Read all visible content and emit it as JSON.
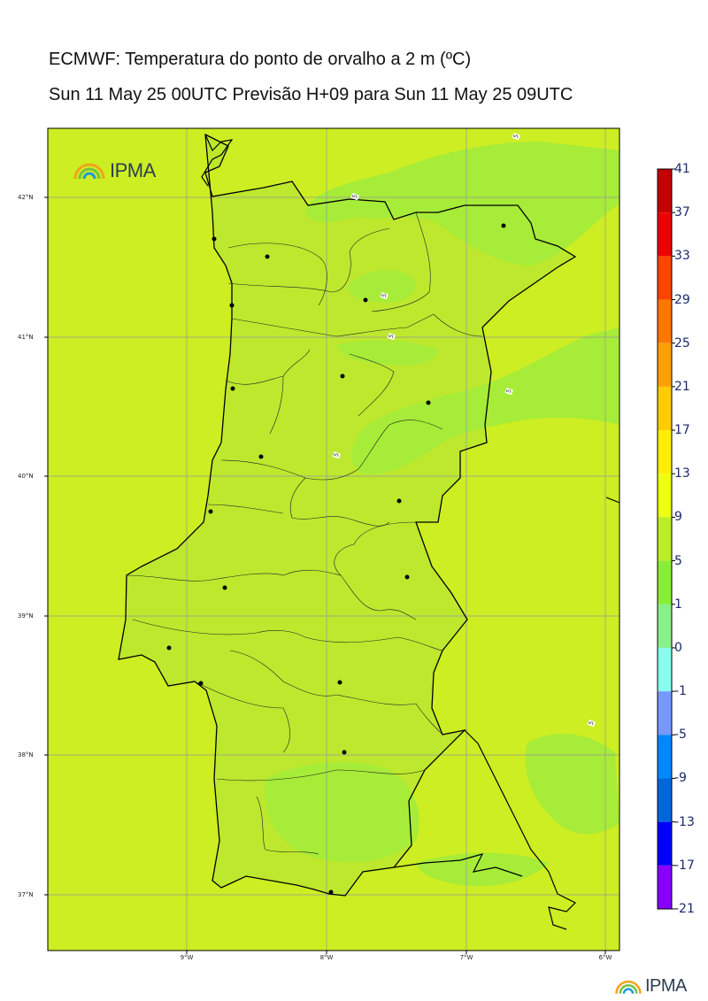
{
  "title": {
    "line1": "ECMWF: Temperatura do ponto de orvalho a 2 m (ºC)",
    "line2": "Sun 11 May 25 00UTC Previsão H+09 para Sun 11 May 25 09UTC"
  },
  "map": {
    "lat_labels": [
      "42°N",
      "41°N",
      "40°N",
      "39°N",
      "38°N",
      "37°N"
    ],
    "lon_labels": [
      "9°W",
      "8°W",
      "7°W",
      "6°W"
    ],
    "contour_label": "5",
    "background_color": "#ccee22",
    "land_color": "#bde82e",
    "cool_zone_color": "#a6ec38"
  },
  "colorbar": {
    "labels": [
      "41",
      "37",
      "33",
      "29",
      "25",
      "21",
      "17",
      "13",
      "9",
      "5",
      "1",
      "0",
      "-1",
      "-5",
      "-9",
      "-13",
      "-17",
      "-21"
    ],
    "colors": [
      "#c40000",
      "#ee0000",
      "#ff4400",
      "#ff7700",
      "#ffa000",
      "#ffcc00",
      "#ffee00",
      "#eeff11",
      "#bbee22",
      "#88ee33",
      "#88f088",
      "#88ffee",
      "#7799ff",
      "#0088ff",
      "#0066dd",
      "#0000ff",
      "#8800ff"
    ]
  },
  "logo": {
    "text": "IPMA"
  }
}
